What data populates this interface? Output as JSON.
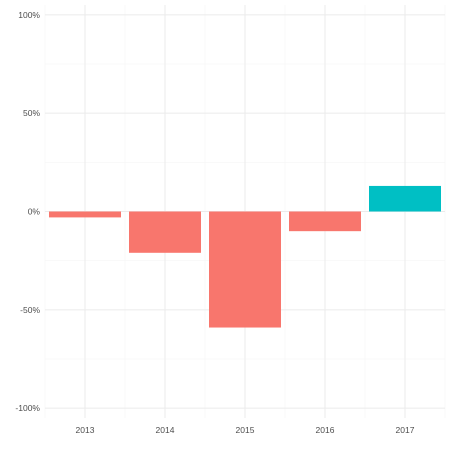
{
  "chart_data": {
    "type": "bar",
    "title": "",
    "xlabel": "",
    "ylabel": "",
    "categories": [
      "2013",
      "2014",
      "2015",
      "2016",
      "2017"
    ],
    "values": [
      -3,
      -21,
      -59,
      -10,
      13
    ],
    "ylim": [
      -105,
      105
    ],
    "y_ticks": [
      -100,
      -50,
      0,
      50,
      100
    ],
    "y_tick_labels": [
      "-100%",
      "-50%",
      "0%",
      "50%",
      "100%"
    ],
    "grid": true,
    "legend": "none",
    "colors": {
      "negative": "#f8766d",
      "positive": "#00bfc4",
      "grid_major": "#ebebeb",
      "grid_minor": "#f5f5f5"
    }
  }
}
